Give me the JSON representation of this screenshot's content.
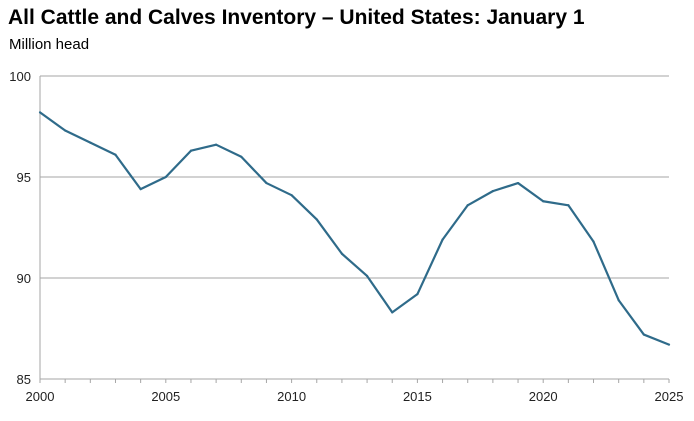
{
  "chart_data": {
    "type": "line",
    "title": "All Cattle and Calves Inventory – United States: January 1",
    "subtitle": "Million head",
    "xlabel": "",
    "ylabel": "",
    "xlim": [
      2000,
      2025
    ],
    "ylim": [
      85,
      100
    ],
    "x_ticks": [
      2000,
      2005,
      2010,
      2015,
      2020,
      2025
    ],
    "y_ticks": [
      85,
      90,
      95,
      100
    ],
    "grid": "horizontal",
    "line_color": "#2f6b8a",
    "x": [
      2000,
      2001,
      2002,
      2003,
      2004,
      2005,
      2006,
      2007,
      2008,
      2009,
      2010,
      2011,
      2012,
      2013,
      2014,
      2015,
      2016,
      2017,
      2018,
      2019,
      2020,
      2021,
      2022,
      2023,
      2024,
      2025
    ],
    "series": [
      {
        "values": [
          98.2,
          97.3,
          96.7,
          96.1,
          94.4,
          95.0,
          96.3,
          96.6,
          96.0,
          94.7,
          94.1,
          92.9,
          91.2,
          90.1,
          88.3,
          89.2,
          91.9,
          93.6,
          94.3,
          94.7,
          93.8,
          93.6,
          91.8,
          88.9,
          87.2,
          86.7
        ]
      }
    ]
  }
}
